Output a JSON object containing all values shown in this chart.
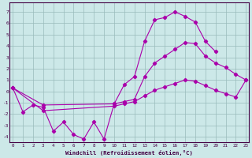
{
  "background_color": "#cce8e8",
  "line_color": "#aa00aa",
  "grid_color": "#99bbbb",
  "ylabel_values": [
    -4,
    -3,
    -2,
    -1,
    0,
    1,
    2,
    3,
    4,
    5,
    6,
    7
  ],
  "xlabel_label": "Windchill (Refroidissement éolien,°C)",
  "figsize": [
    3.2,
    2.0
  ],
  "dpi": 100,
  "xlim": [
    -0.3,
    23.3
  ],
  "ylim": [
    -4.5,
    7.8
  ],
  "line1_x": [
    0,
    1,
    2,
    3,
    4,
    5,
    6,
    7,
    8,
    9,
    10,
    11,
    12,
    13,
    14,
    15,
    16,
    17,
    18,
    19,
    20
  ],
  "line1_y": [
    0.3,
    -1.8,
    -1.2,
    -1.4,
    -3.5,
    -2.7,
    -3.8,
    -4.2,
    -2.7,
    -4.2,
    -1.1,
    0.6,
    1.3,
    4.4,
    6.3,
    6.5,
    7.0,
    6.6,
    6.1,
    4.4,
    3.5
  ],
  "line2_x": [
    0,
    3,
    10,
    11,
    12,
    13,
    14,
    15,
    16,
    17,
    18,
    19,
    20,
    21,
    22,
    23
  ],
  "line2_y": [
    0.3,
    -1.2,
    -1.1,
    -0.9,
    -0.7,
    1.3,
    2.5,
    3.1,
    3.7,
    4.3,
    4.2,
    3.1,
    2.5,
    2.1,
    1.5,
    1.0
  ],
  "line3_x": [
    0,
    3,
    10,
    11,
    12,
    13,
    14,
    15,
    16,
    17,
    18,
    19,
    20,
    21,
    22,
    23
  ],
  "line3_y": [
    0.3,
    -1.7,
    -1.3,
    -1.1,
    -0.9,
    -0.4,
    0.1,
    0.4,
    0.7,
    1.0,
    0.9,
    0.5,
    0.1,
    -0.2,
    -0.5,
    1.0
  ]
}
